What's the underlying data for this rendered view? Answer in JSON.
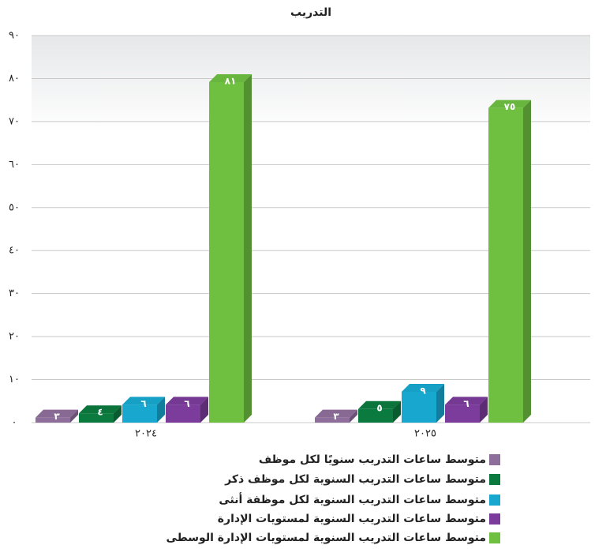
{
  "chart_data": {
    "type": "bar3d",
    "title": "التدريب",
    "categories": [
      "٢٠٢٤",
      "٢٠٢٥"
    ],
    "series": [
      {
        "name": "متوسط ساعات التدريب سنويًا لكل موظف",
        "color": "#8e6f9c",
        "values": [
          3,
          3
        ],
        "value_labels": [
          "٣",
          "٣"
        ]
      },
      {
        "name": "متوسط ساعات التدريب السنوية لكل موظف ذكر",
        "color": "#0b7a3e",
        "values": [
          4,
          5
        ],
        "value_labels": [
          "٤",
          "٥"
        ]
      },
      {
        "name": "متوسط ساعات التدريب السنوية لكل موظفة أنثى",
        "color": "#18a8cf",
        "values": [
          6,
          9
        ],
        "value_labels": [
          "٦",
          "٩"
        ]
      },
      {
        "name": "متوسط ساعات التدريب السنوية لمستويات الإدارة",
        "color": "#7b3c9c",
        "values": [
          6,
          6
        ],
        "value_labels": [
          "٦",
          "٦"
        ]
      },
      {
        "name": "متوسط ساعات التدريب السنوية لمستويات الإدارة الوسطى",
        "color": "#6fc041",
        "values": [
          81,
          75
        ],
        "value_labels": [
          "٨١",
          "٧٥"
        ]
      }
    ],
    "ylim": [
      0,
      90
    ],
    "yticks": [
      {
        "value": 0,
        "label": "٠"
      },
      {
        "value": 10,
        "label": "١٠"
      },
      {
        "value": 20,
        "label": "٢٠"
      },
      {
        "value": 30,
        "label": "٣٠"
      },
      {
        "value": 40,
        "label": "٤٠"
      },
      {
        "value": 50,
        "label": "٥٠"
      },
      {
        "value": 60,
        "label": "٦٠"
      },
      {
        "value": 70,
        "label": "٧٠"
      },
      {
        "value": 80,
        "label": "٨٠"
      },
      {
        "value": 90,
        "label": "٩٠"
      }
    ],
    "grid": true
  }
}
